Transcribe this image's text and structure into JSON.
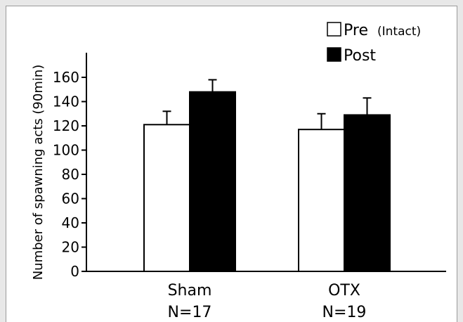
{
  "chart_data": {
    "type": "bar",
    "ylabel": "Number of spawning acts (90min)",
    "xlabel": "",
    "ylim": [
      0,
      160
    ],
    "yticks": [
      0,
      20,
      40,
      60,
      80,
      100,
      120,
      140,
      160
    ],
    "categories": [
      "Sham",
      "OTX"
    ],
    "sample_sizes": [
      "N=17",
      "N=19"
    ],
    "series": [
      {
        "name": "Pre",
        "name_suffix": "(Intact)",
        "values": [
          121,
          117
        ],
        "errors": [
          11,
          13
        ],
        "color": "#ffffff"
      },
      {
        "name": "Post",
        "values": [
          148,
          129
        ],
        "errors": [
          10,
          14
        ],
        "color": "#000000"
      }
    ],
    "legend_position": "top-right",
    "grid": false
  }
}
